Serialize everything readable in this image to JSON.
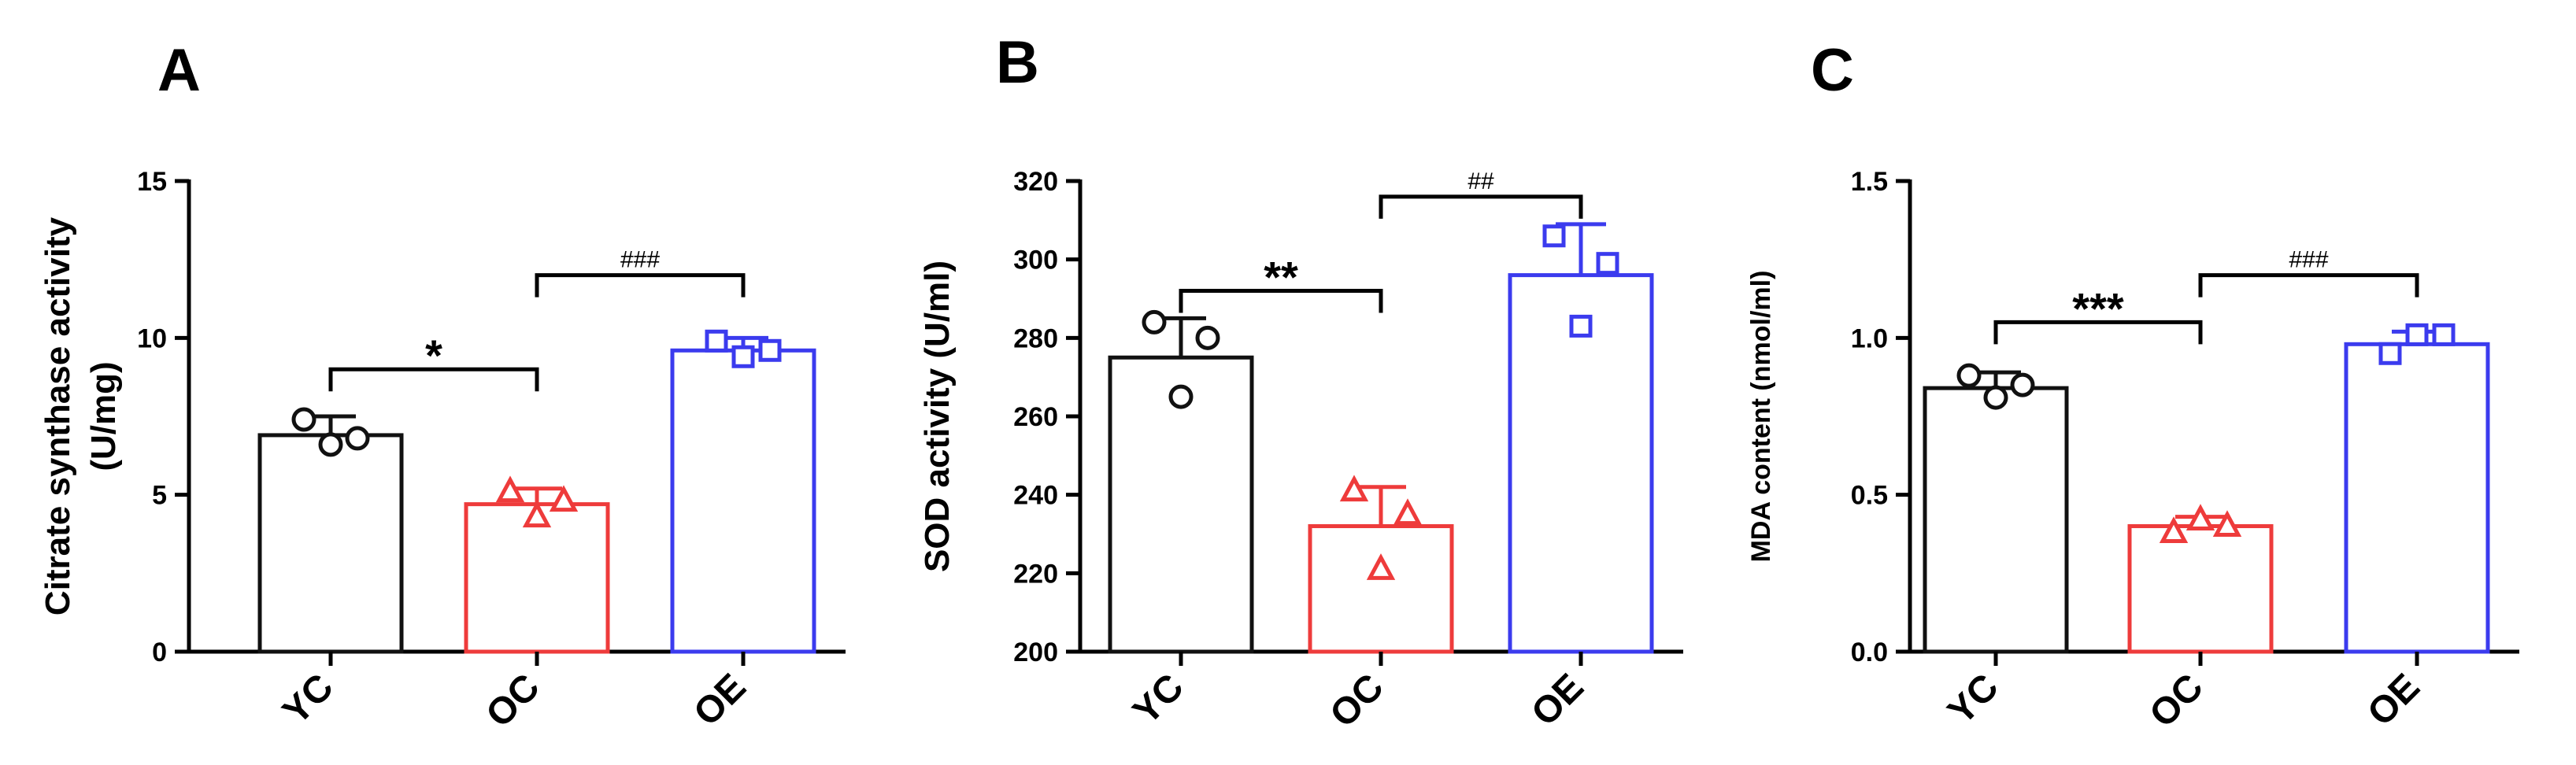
{
  "figure_type": "bar chart with individual data points",
  "groups": [
    "YC",
    "OC",
    "OE"
  ],
  "colors": {
    "YC": "#111111",
    "OC": "#ee3b3b",
    "OE": "#3b3bee"
  },
  "markers": {
    "YC": "circle",
    "OC": "triangle",
    "OE": "square"
  },
  "chart_data": [
    {
      "type": "bar",
      "panel_label": "A",
      "title": "",
      "ylabel": "Citrate synthase activity (U/mg)",
      "ylabel_lines": [
        "Citrate synthase activity",
        "(U/mg)"
      ],
      "categories": [
        "YC",
        "OC",
        "OE"
      ],
      "values": [
        6.9,
        4.7,
        9.6
      ],
      "errors": [
        0.6,
        0.5,
        0.4
      ],
      "points": [
        [
          7.4,
          6.6,
          6.8
        ],
        [
          5.1,
          4.3,
          4.8
        ],
        [
          9.9,
          9.4,
          9.6
        ]
      ],
      "ylim": [
        0,
        15
      ],
      "yticks": [
        0,
        5,
        10,
        15
      ],
      "ytick_labels": [
        "0",
        "5",
        "10",
        "15"
      ],
      "significance": [
        {
          "from": 0,
          "to": 1,
          "label": "*",
          "y": 9.0
        },
        {
          "from": 1,
          "to": 2,
          "label": "###",
          "y": 12.0
        }
      ]
    },
    {
      "type": "bar",
      "panel_label": "B",
      "title": "",
      "ylabel": "SOD activity (U/ml)",
      "ylabel_lines": [
        "SOD activity (U/ml)"
      ],
      "categories": [
        "YC",
        "OC",
        "OE"
      ],
      "values": [
        275,
        232,
        296
      ],
      "errors": [
        10,
        10,
        13
      ],
      "points": [
        [
          284,
          265,
          280
        ],
        [
          241,
          221,
          235
        ],
        [
          306,
          283,
          299
        ]
      ],
      "ylim": [
        200,
        320
      ],
      "yticks": [
        200,
        220,
        240,
        260,
        280,
        300,
        320
      ],
      "ytick_labels": [
        "200",
        "220",
        "240",
        "260",
        "280",
        "300",
        "320"
      ],
      "significance": [
        {
          "from": 0,
          "to": 1,
          "label": "**",
          "y": 292
        },
        {
          "from": 1,
          "to": 2,
          "label": "##",
          "y": 316
        }
      ]
    },
    {
      "type": "bar",
      "panel_label": "C",
      "title": "",
      "ylabel": "MDA content (nmol/ml)",
      "ylabel_lines": [
        "MDA content (nmol/ml)"
      ],
      "categories": [
        "YC",
        "OC",
        "OE"
      ],
      "values": [
        0.84,
        0.4,
        0.98
      ],
      "errors": [
        0.05,
        0.03,
        0.04
      ],
      "points": [
        [
          0.88,
          0.81,
          0.85
        ],
        [
          0.38,
          0.42,
          0.4
        ],
        [
          0.95,
          1.01,
          1.01
        ]
      ],
      "ylim": [
        0,
        1.5
      ],
      "yticks": [
        0,
        0.5,
        1.0,
        1.5
      ],
      "ytick_labels": [
        "0.0",
        "0.5",
        "1.0",
        "1.5"
      ],
      "significance": [
        {
          "from": 0,
          "to": 1,
          "label": "***",
          "y": 1.05
        },
        {
          "from": 1,
          "to": 2,
          "label": "###",
          "y": 1.2
        }
      ]
    }
  ]
}
